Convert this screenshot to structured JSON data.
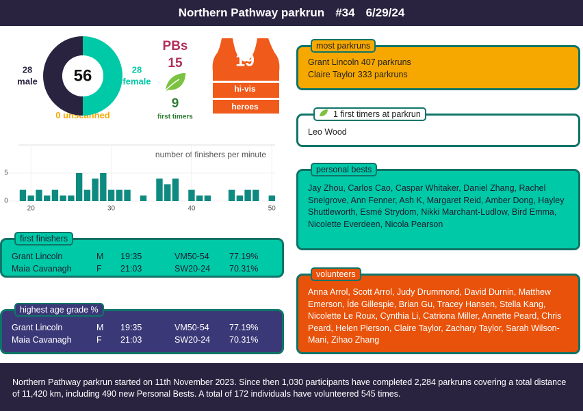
{
  "header": {
    "title": "Northern Pathway parkrun",
    "event": "#34",
    "date": "6/29/24"
  },
  "finishers": {
    "male": 28,
    "male_label": "male",
    "female": 28,
    "female_label": "female",
    "unscanned": 0,
    "unscanned_label": "unscanned",
    "total": 56,
    "male_color": "#2a2340",
    "female_color": "#00c9a7",
    "unscanned_color": "#f7a800"
  },
  "pbs": {
    "label": "PBs",
    "count": 15
  },
  "first_timers": {
    "count": 9,
    "label": "first timers"
  },
  "hi_vis": {
    "count": 19,
    "line1": "hi-vis",
    "line2": "heroes"
  },
  "chart_data": {
    "type": "bar",
    "title": "number of finishers per minute",
    "x": [
      19,
      20,
      21,
      22,
      23,
      24,
      25,
      26,
      27,
      28,
      29,
      30,
      31,
      32,
      33,
      34,
      35,
      36,
      37,
      38,
      39,
      40,
      41,
      42,
      43,
      44,
      45,
      46,
      47,
      48,
      49,
      50
    ],
    "values": [
      2,
      1,
      2,
      1,
      2,
      1,
      1,
      5,
      2,
      4,
      5,
      2,
      2,
      2,
      0,
      1,
      0,
      4,
      3,
      4,
      0,
      2,
      1,
      1,
      0,
      0,
      2,
      1,
      2,
      2,
      0,
      1
    ],
    "xlim": [
      17,
      50.4
    ],
    "ylim": [
      0,
      10
    ],
    "xticks": [
      20,
      30,
      40,
      50
    ],
    "yticks": [
      0,
      5
    ],
    "color": "#0e8a80",
    "grid": true
  },
  "first_finishers": {
    "title": "first finishers",
    "rows": [
      [
        "Grant Lincoln",
        "M",
        "19:35",
        "VM50-54",
        "77.19%"
      ],
      [
        "Maia Cavanagh",
        "F",
        "21:03",
        "SW20-24",
        "70.31%"
      ]
    ]
  },
  "age_grade": {
    "title": "highest age grade %",
    "rows": [
      [
        "Grant Lincoln",
        "M",
        "19:35",
        "VM50-54",
        "77.19%"
      ],
      [
        "Maia Cavanagh",
        "F",
        "21:03",
        "SW20-24",
        "70.31%"
      ]
    ]
  },
  "most_parkruns": {
    "title": "most parkruns",
    "items": [
      "Grant Lincoln 407 parkruns",
      "Claire Taylor 333 parkruns"
    ]
  },
  "first_timers_box": {
    "count": 1,
    "title": "first timers at parkrun",
    "items": [
      "Leo Wood"
    ]
  },
  "personal_bests": {
    "title": "personal bests",
    "text": "Jay Zhou, Carlos Cao, Caspar Whitaker, Daniel Zhang, Rachel Snelgrove, Ann Fenner, Ash K, Margaret Reid, Amber Dong, Hayley Shuttleworth, Esmé Strydom, Nikki Marchant-Ludlow, Bird Emma, Nicolette Everdeen, Nicola Pearson"
  },
  "volunteers": {
    "title": "volunteers",
    "text": "Anna Arrol, Scott Arrol, Judy Drummond, David Durnin, Matthew Emerson, Íde Gillespie, Brian Gu, Tracey Hansen, Stella Kang, Nicolette Le Roux, Cynthia Li, Catriona Miller, Annette Peard, Chris Peard, Helen Pierson, Claire Taylor, Zachary Taylor, Sarah Wilson-Mani, Zihao Zhang"
  },
  "footer": {
    "text": "Northern Pathway parkrun started on 11th November 2023. Since then 1,030 participants have completed 2,284 parkruns covering a total distance of 11,420 km, including 490 new Personal Bests. A total of 172 individuals have volunteered 545 times."
  }
}
